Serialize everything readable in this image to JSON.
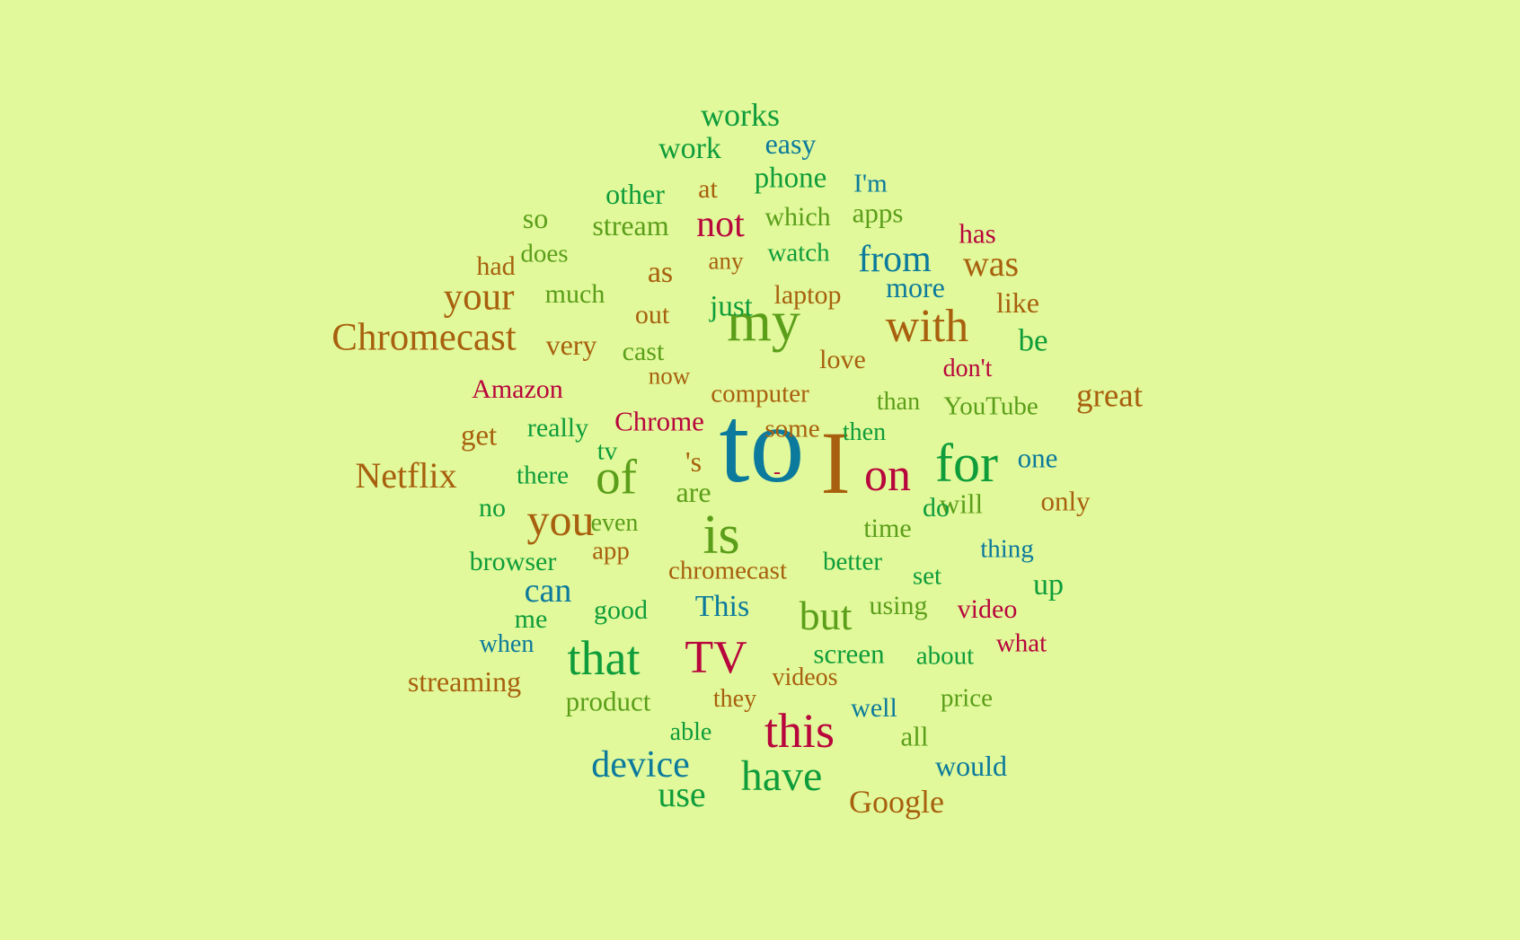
{
  "palette": {
    "background": "#e1f99a",
    "teal": "#0c7a9c",
    "green": "#0f9c3a",
    "olive": "#5b9e1a",
    "brown": "#a8600e",
    "crimson": "#b8063c"
  },
  "words": [
    {
      "text": "to",
      "color": "teal"
    },
    {
      "text": "I",
      "color": "brown"
    },
    {
      "text": "my",
      "color": "olive"
    },
    {
      "text": "with",
      "color": "brown"
    },
    {
      "text": "for",
      "color": "green"
    },
    {
      "text": "on",
      "color": "crimson"
    },
    {
      "text": "is",
      "color": "olive"
    },
    {
      "text": "of",
      "color": "olive"
    },
    {
      "text": "you",
      "color": "brown"
    },
    {
      "text": "that",
      "color": "green"
    },
    {
      "text": "TV",
      "color": "crimson"
    },
    {
      "text": "this",
      "color": "crimson"
    },
    {
      "text": "have",
      "color": "green"
    },
    {
      "text": "but",
      "color": "olive"
    },
    {
      "text": "Chromecast",
      "color": "brown"
    },
    {
      "text": "Netflix",
      "color": "brown"
    },
    {
      "text": "device",
      "color": "teal"
    },
    {
      "text": "not",
      "color": "crimson"
    },
    {
      "text": "from",
      "color": "teal"
    },
    {
      "text": "was",
      "color": "brown"
    },
    {
      "text": "your",
      "color": "brown"
    },
    {
      "text": "can",
      "color": "teal"
    },
    {
      "text": "use",
      "color": "green"
    },
    {
      "text": "great",
      "color": "brown"
    },
    {
      "text": "Google",
      "color": "brown"
    },
    {
      "text": "works",
      "color": "green"
    },
    {
      "text": "work",
      "color": "green"
    },
    {
      "text": "easy",
      "color": "teal"
    },
    {
      "text": "phone",
      "color": "green"
    },
    {
      "text": "I'm",
      "color": "teal"
    },
    {
      "text": "other",
      "color": "green"
    },
    {
      "text": "at",
      "color": "brown"
    },
    {
      "text": "so",
      "color": "olive"
    },
    {
      "text": "stream",
      "color": "olive"
    },
    {
      "text": "which",
      "color": "olive"
    },
    {
      "text": "apps",
      "color": "olive"
    },
    {
      "text": "has",
      "color": "crimson"
    },
    {
      "text": "had",
      "color": "brown"
    },
    {
      "text": "does",
      "color": "olive"
    },
    {
      "text": "as",
      "color": "brown"
    },
    {
      "text": "any",
      "color": "brown"
    },
    {
      "text": "watch",
      "color": "green"
    },
    {
      "text": "more",
      "color": "teal"
    },
    {
      "text": "much",
      "color": "olive"
    },
    {
      "text": "out",
      "color": "brown"
    },
    {
      "text": "just",
      "color": "green"
    },
    {
      "text": "laptop",
      "color": "brown"
    },
    {
      "text": "like",
      "color": "brown"
    },
    {
      "text": "be",
      "color": "green"
    },
    {
      "text": "very",
      "color": "brown"
    },
    {
      "text": "cast",
      "color": "olive"
    },
    {
      "text": "love",
      "color": "brown"
    },
    {
      "text": "don't",
      "color": "crimson"
    },
    {
      "text": "now",
      "color": "brown"
    },
    {
      "text": "Amazon",
      "color": "crimson"
    },
    {
      "text": "computer",
      "color": "brown"
    },
    {
      "text": "than",
      "color": "olive"
    },
    {
      "text": "YouTube",
      "color": "olive"
    },
    {
      "text": "get",
      "color": "brown"
    },
    {
      "text": "really",
      "color": "green"
    },
    {
      "text": "Chrome",
      "color": "crimson"
    },
    {
      "text": "some",
      "color": "brown"
    },
    {
      "text": "then",
      "color": "green"
    },
    {
      "text": "tv",
      "color": "green"
    },
    {
      "text": "'s",
      "color": "brown"
    },
    {
      "text": "-",
      "color": "crimson"
    },
    {
      "text": "one",
      "color": "teal"
    },
    {
      "text": "there",
      "color": "green"
    },
    {
      "text": "are",
      "color": "olive"
    },
    {
      "text": "will",
      "color": "olive"
    },
    {
      "text": "only",
      "color": "brown"
    },
    {
      "text": "no",
      "color": "green"
    },
    {
      "text": "do",
      "color": "green"
    },
    {
      "text": "even",
      "color": "olive"
    },
    {
      "text": "time",
      "color": "olive"
    },
    {
      "text": "browser",
      "color": "green"
    },
    {
      "text": "app",
      "color": "brown"
    },
    {
      "text": "thing",
      "color": "teal"
    },
    {
      "text": "chromecast",
      "color": "brown"
    },
    {
      "text": "better",
      "color": "green"
    },
    {
      "text": "set",
      "color": "green"
    },
    {
      "text": "up",
      "color": "green"
    },
    {
      "text": "me",
      "color": "green"
    },
    {
      "text": "good",
      "color": "green"
    },
    {
      "text": "This",
      "color": "teal"
    },
    {
      "text": "using",
      "color": "olive"
    },
    {
      "text": "video",
      "color": "crimson"
    },
    {
      "text": "when",
      "color": "teal"
    },
    {
      "text": "screen",
      "color": "green"
    },
    {
      "text": "about",
      "color": "green"
    },
    {
      "text": "what",
      "color": "crimson"
    },
    {
      "text": "streaming",
      "color": "brown"
    },
    {
      "text": "videos",
      "color": "brown"
    },
    {
      "text": "product",
      "color": "olive"
    },
    {
      "text": "they",
      "color": "brown"
    },
    {
      "text": "price",
      "color": "olive"
    },
    {
      "text": "well",
      "color": "teal"
    },
    {
      "text": "able",
      "color": "green"
    },
    {
      "text": "all",
      "color": "olive"
    },
    {
      "text": "would",
      "color": "teal"
    }
  ]
}
